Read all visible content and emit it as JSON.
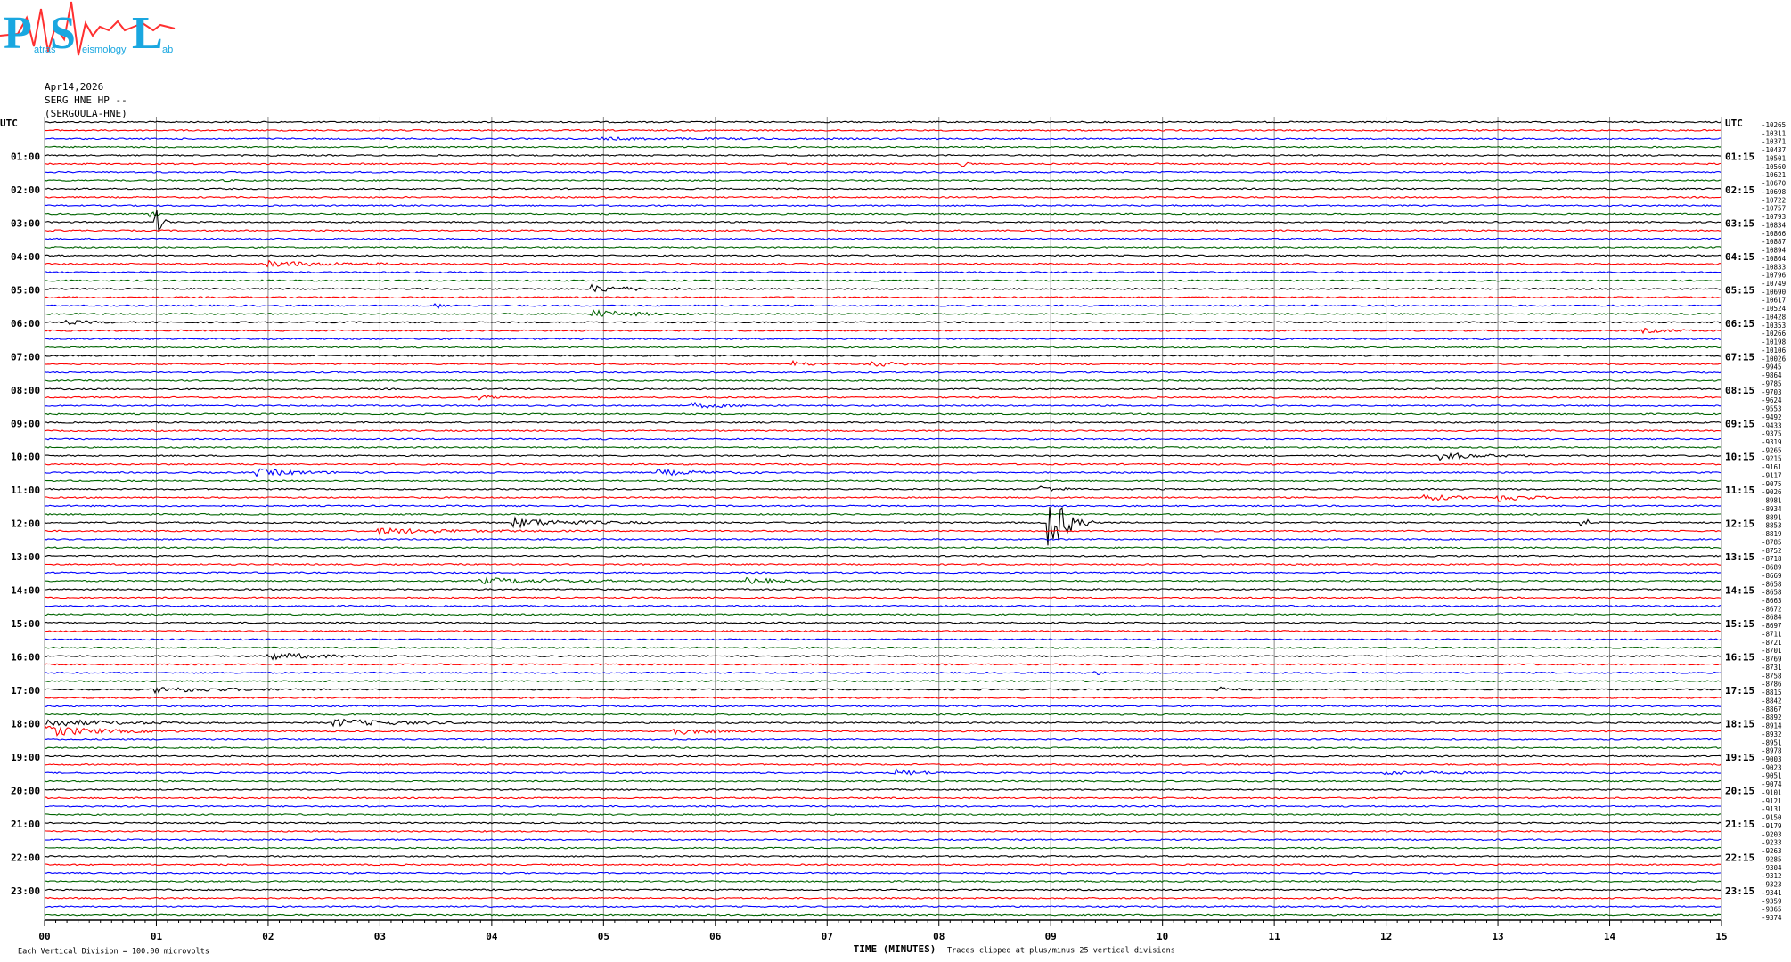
{
  "logo": {
    "letters": [
      "P",
      "S",
      "L"
    ],
    "words": [
      "atras",
      "eismology",
      "ab"
    ]
  },
  "header": {
    "date": "Apr14,2026",
    "channel": "SERG HNE HP --",
    "station": "(SERGOULA-HNE)"
  },
  "left_labels": [
    "UTC",
    "01:00",
    "02:00",
    "03:00",
    "04:00",
    "05:00",
    "06:00",
    "07:00",
    "08:00",
    "09:00",
    "10:00",
    "11:00",
    "12:00",
    "13:00",
    "14:00",
    "15:00",
    "16:00",
    "17:00",
    "18:00",
    "19:00",
    "20:00",
    "21:00",
    "22:00",
    "23:00"
  ],
  "right_labels": [
    "UTC",
    "01:15",
    "02:15",
    "03:15",
    "04:15",
    "05:15",
    "06:15",
    "07:15",
    "08:15",
    "09:15",
    "10:15",
    "11:15",
    "12:15",
    "13:15",
    "14:15",
    "15:15",
    "16:15",
    "17:15",
    "18:15",
    "19:15",
    "20:15",
    "21:15",
    "22:15",
    "23:15"
  ],
  "trace_values": [
    -10265,
    -10311,
    -10371,
    -10437,
    -10501,
    -10560,
    -10621,
    -10670,
    -10698,
    -10722,
    -10757,
    -10793,
    -10834,
    -10866,
    -10887,
    -10894,
    -10864,
    -10833,
    -10796,
    -10749,
    -10690,
    -10617,
    -10524,
    -10428,
    -10353,
    -10266,
    -10198,
    -10106,
    -10026,
    -9945,
    -9864,
    -9785,
    -9703,
    -9624,
    -9553,
    -9492,
    -9433,
    -9375,
    -9319,
    -9265,
    -9215,
    -9161,
    -9117,
    -9075,
    -9026,
    -8981,
    -8934,
    -8891,
    -8853,
    -8819,
    -8785,
    -8752,
    -8718,
    -8689,
    -8669,
    -8658,
    -8658,
    -8663,
    -8672,
    -8684,
    -8697,
    -8711,
    -8721,
    -8701,
    -8769,
    -8731,
    -8758,
    -8786,
    -8815,
    -8842,
    -8867,
    -8892,
    -8914,
    -8932,
    -8951,
    -8978,
    -9003,
    -9023,
    -9051,
    -9074,
    -9101,
    -9121,
    -9131,
    -9150,
    -9179,
    -9203,
    -9233,
    -9263,
    -9285,
    -9304,
    -9312,
    -9323,
    -9341,
    -9359,
    -9365,
    -9374
  ],
  "trace_colors": [
    "#000000",
    "#ff0000",
    "#0000ff",
    "#006400"
  ],
  "x_axis": {
    "labels": [
      "00",
      "01",
      "02",
      "03",
      "04",
      "05",
      "06",
      "07",
      "08",
      "09",
      "10",
      "11",
      "12",
      "13",
      "14",
      "15"
    ],
    "title": "TIME (MINUTES)"
  },
  "footer": {
    "scale": "Each Vertical Division =  100.00 microvolts",
    "clip": "Traces clipped at plus/minus 25 vertical divisions"
  }
}
